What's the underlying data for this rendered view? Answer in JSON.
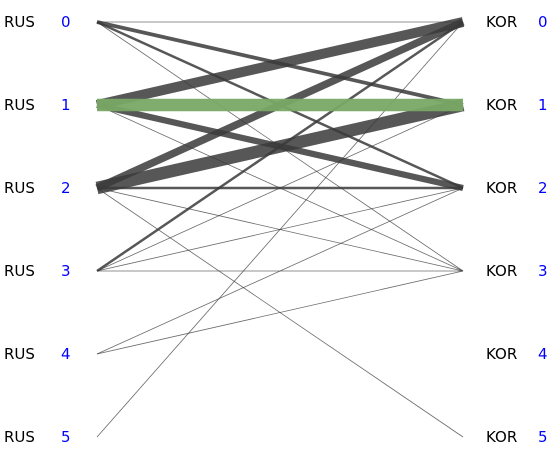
{
  "diagram_data": {
    "type": "bipartite-flow",
    "left": {
      "team": "RUS",
      "nodes": [
        0,
        1,
        2,
        3,
        4,
        5
      ]
    },
    "right": {
      "team": "KOR",
      "nodes": [
        0,
        1,
        2,
        3,
        4,
        5
      ]
    },
    "edges": [
      {
        "from": 0,
        "to": 0,
        "weight": 1
      },
      {
        "from": 0,
        "to": 1,
        "weight": 3
      },
      {
        "from": 0,
        "to": 2,
        "weight": 2
      },
      {
        "from": 0,
        "to": 3,
        "weight": 1
      },
      {
        "from": 1,
        "to": 0,
        "weight": 8
      },
      {
        "from": 1,
        "to": 1,
        "weight": 10,
        "highlight": true
      },
      {
        "from": 1,
        "to": 2,
        "weight": 5
      },
      {
        "from": 1,
        "to": 3,
        "weight": 1
      },
      {
        "from": 2,
        "to": 0,
        "weight": 6
      },
      {
        "from": 2,
        "to": 1,
        "weight": 10
      },
      {
        "from": 2,
        "to": 2,
        "weight": 2
      },
      {
        "from": 2,
        "to": 3,
        "weight": 1
      },
      {
        "from": 2,
        "to": 5,
        "weight": 1
      },
      {
        "from": 3,
        "to": 0,
        "weight": 2
      },
      {
        "from": 3,
        "to": 1,
        "weight": 1
      },
      {
        "from": 3,
        "to": 2,
        "weight": 1
      },
      {
        "from": 3,
        "to": 3,
        "weight": 1
      },
      {
        "from": 4,
        "to": 2,
        "weight": 1
      },
      {
        "from": 4,
        "to": 3,
        "weight": 1
      },
      {
        "from": 5,
        "to": 0,
        "weight": 1
      }
    ]
  },
  "colors": {
    "edge": "#3a3a3a",
    "highlight_edge": "#79a865",
    "index": "#0000ff",
    "label": "#000000"
  }
}
